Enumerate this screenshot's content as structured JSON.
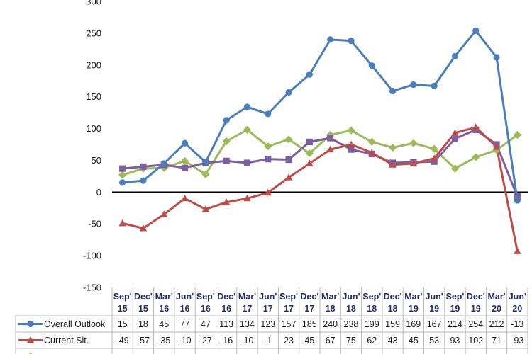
{
  "chart_data": {
    "type": "line",
    "ylim": [
      -150,
      300
    ],
    "yticks": [
      -150,
      -100,
      -50,
      0,
      50,
      100,
      150,
      200,
      250,
      300
    ],
    "categories": [
      [
        "Sep'",
        "15"
      ],
      [
        "Dec'",
        "15"
      ],
      [
        "Mar'",
        "16"
      ],
      [
        "Jun'",
        "16"
      ],
      [
        "Sep'",
        "16"
      ],
      [
        "Dec'",
        "16"
      ],
      [
        "Mar'",
        "17"
      ],
      [
        "Jun'",
        "17"
      ],
      [
        "Sep'",
        "17"
      ],
      [
        "Dec'",
        "17"
      ],
      [
        "Mar'",
        "18"
      ],
      [
        "Jun'",
        "18"
      ],
      [
        "Sep'",
        "18"
      ],
      [
        "Dec'",
        "18"
      ],
      [
        "Mar'",
        "19"
      ],
      [
        "Jun'",
        "19"
      ],
      [
        "Sep'",
        "19"
      ],
      [
        "Dec'",
        "19"
      ],
      [
        "Mar'",
        "20"
      ],
      [
        "Jun'",
        "20"
      ]
    ],
    "series": [
      {
        "name": "Overall Outlook",
        "color": "#4a7ebb",
        "marker": "circle",
        "in_table": true,
        "values": [
          15,
          18,
          45,
          77,
          47,
          113,
          134,
          123,
          157,
          185,
          240,
          238,
          199,
          159,
          169,
          167,
          214,
          254,
          212,
          -13
        ]
      },
      {
        "name": "Current Sit.",
        "color": "#be4b48",
        "marker": "triangle",
        "in_table": true,
        "values": [
          -49,
          -57,
          -35,
          -10,
          -27,
          -16,
          -10,
          -1,
          23,
          45,
          67,
          75,
          62,
          43,
          45,
          53,
          93,
          102,
          71,
          -93
        ]
      },
      {
        "name": "",
        "color": "#9bbb59",
        "marker": "diamond",
        "in_table": false,
        "values": [
          27,
          37,
          38,
          49,
          28,
          80,
          98,
          72,
          83,
          61,
          90,
          97,
          79,
          70,
          77,
          68,
          37,
          55,
          66,
          90
        ]
      },
      {
        "name": "",
        "color": "#7d5fa0",
        "marker": "square",
        "in_table": false,
        "values": [
          37,
          40,
          43,
          38,
          46,
          49,
          46,
          52,
          51,
          79,
          85,
          67,
          60,
          46,
          47,
          48,
          84,
          98,
          75,
          -7
        ]
      }
    ]
  }
}
